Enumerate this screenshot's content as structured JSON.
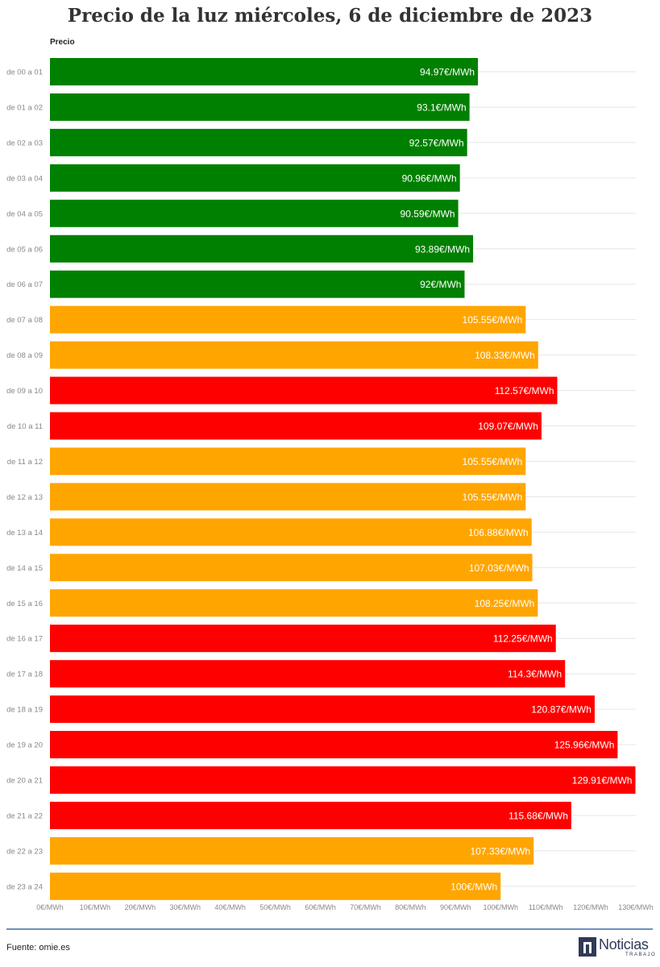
{
  "title": "Precio de la luz miércoles, 6 de diciembre de 2023",
  "footer": {
    "source": "Fuente: omie.es",
    "logo_word": "Noticias",
    "logo_sub": "TRABAJO"
  },
  "colors": {
    "low": "#008000",
    "mid": "#ffa500",
    "high": "#ff0000",
    "grid": "#e6e6e6",
    "tick_text": "#888888",
    "footer_line": "#6b8fc0"
  },
  "chart_data": {
    "type": "bar",
    "orientation": "horizontal",
    "title": "Precio de la luz miércoles, 6 de diciembre de 2023",
    "series_label": "Precio",
    "categories": [
      "de 00 a 01",
      "de 01 a 02",
      "de 02 a 03",
      "de 03 a 04",
      "de 04 a 05",
      "de 05 a 06",
      "de 06 a 07",
      "de 07 a 08",
      "de 08 a 09",
      "de 09 a 10",
      "de 10 a 11",
      "de 11 a 12",
      "de 12 a 13",
      "de 13 a 14",
      "de 14 a 15",
      "de 15 a 16",
      "de 16 a 17",
      "de 17 a 18",
      "de 18 a 19",
      "de 19 a 20",
      "de 20 a 21",
      "de 21 a 22",
      "de 22 a 23",
      "de 23 a 24"
    ],
    "values": [
      94.97,
      93.1,
      92.57,
      90.96,
      90.59,
      93.89,
      92,
      105.55,
      108.33,
      112.57,
      109.07,
      105.55,
      105.55,
      106.88,
      107.03,
      108.25,
      112.25,
      114.3,
      120.87,
      125.96,
      129.91,
      115.68,
      107.33,
      100
    ],
    "labels": [
      "94.97€/MWh",
      "93.1€/MWh",
      "92.57€/MWh",
      "90.96€/MWh",
      "90.59€/MWh",
      "93.89€/MWh",
      "92€/MWh",
      "105.55€/MWh",
      "108.33€/MWh",
      "112.57€/MWh",
      "109.07€/MWh",
      "105.55€/MWh",
      "105.55€/MWh",
      "106.88€/MWh",
      "107.03€/MWh",
      "108.25€/MWh",
      "112.25€/MWh",
      "114.3€/MWh",
      "120.87€/MWh",
      "125.96€/MWh",
      "129.91€/MWh",
      "115.68€/MWh",
      "107.33€/MWh",
      "100€/MWh"
    ],
    "bar_colors": [
      "low",
      "low",
      "low",
      "low",
      "low",
      "low",
      "low",
      "mid",
      "mid",
      "high",
      "high",
      "mid",
      "mid",
      "mid",
      "mid",
      "mid",
      "high",
      "high",
      "high",
      "high",
      "high",
      "high",
      "mid",
      "mid"
    ],
    "xlim": [
      0,
      130
    ],
    "xticks": [
      0,
      10,
      20,
      30,
      40,
      50,
      60,
      70,
      80,
      90,
      100,
      110,
      120,
      130
    ],
    "xtick_labels": [
      "0€/MWh",
      "10€/MWh",
      "20€/MWh",
      "30€/MWh",
      "40€/MWh",
      "50€/MWh",
      "60€/MWh",
      "70€/MWh",
      "80€/MWh",
      "90€/MWh",
      "100€/MWh",
      "110€/MWh",
      "120€/MWh",
      "130€/MWh"
    ],
    "grid": true,
    "legend": "none"
  }
}
